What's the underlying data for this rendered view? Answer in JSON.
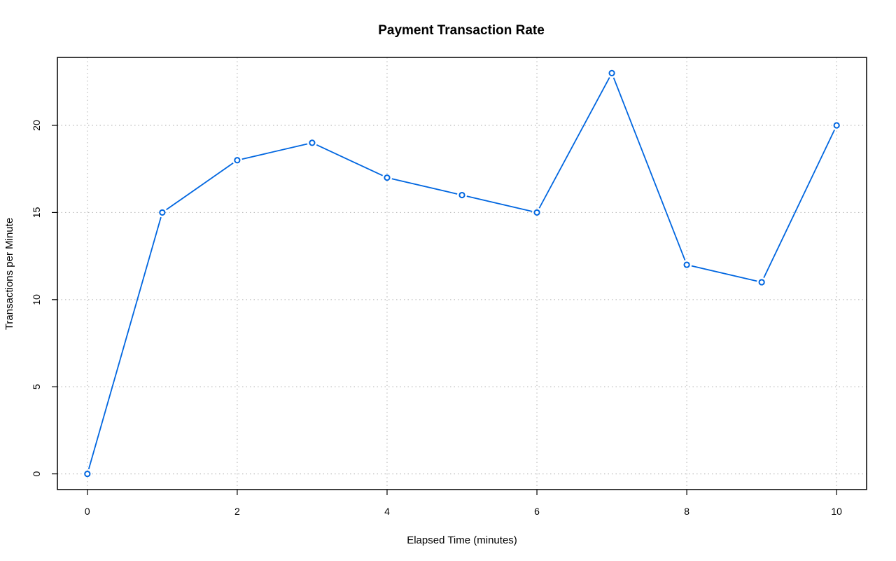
{
  "chart_data": {
    "type": "line",
    "title": "Payment Transaction Rate",
    "xlabel": "Elapsed Time (minutes)",
    "ylabel": "Transactions per Minute",
    "x": [
      0,
      1,
      2,
      3,
      4,
      5,
      6,
      7,
      8,
      9,
      10
    ],
    "series": [
      {
        "values": [
          0,
          15,
          18,
          19,
          17,
          16,
          15,
          23,
          12,
          11,
          20
        ],
        "color": "#0066e0"
      }
    ],
    "xlim": [
      -0.4,
      10.4
    ],
    "ylim": [
      -0.9,
      23.9
    ],
    "x_ticks": [
      0,
      2,
      4,
      6,
      8,
      10
    ],
    "y_ticks": [
      0,
      5,
      10,
      15,
      20
    ],
    "x_grid": [
      0,
      2,
      4,
      6,
      8,
      10
    ],
    "y_grid": [
      0,
      5,
      10,
      15,
      20
    ],
    "grid": true,
    "legend": "none"
  }
}
